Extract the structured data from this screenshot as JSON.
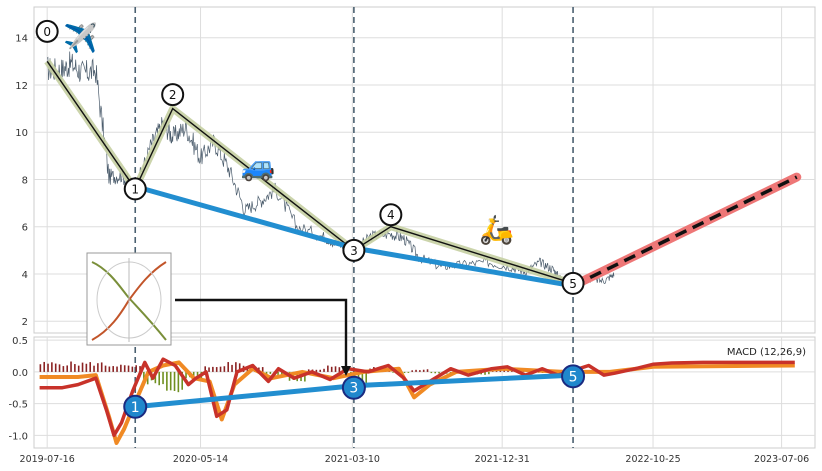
{
  "chart_data": [
    {
      "type": "line",
      "panel": "price",
      "yticks": [
        2,
        4,
        6,
        8,
        10,
        12,
        14
      ],
      "ylim": [
        1.5,
        15.3
      ],
      "xlim": [
        "2019-06-20",
        "2023-09-10"
      ],
      "grid": true,
      "price_series": {
        "name": "",
        "approx_points": [
          [
            "2019-07-16",
            12.7
          ],
          [
            "2019-08-10",
            12.6
          ],
          [
            "2019-09-01",
            12.9
          ],
          [
            "2019-09-25",
            12.5
          ],
          [
            "2019-10-20",
            12.6
          ],
          [
            "2019-11-15",
            8.1
          ],
          [
            "2019-12-10",
            8.2
          ],
          [
            "2020-01-06",
            7.6
          ],
          [
            "2020-02-05",
            9.4
          ],
          [
            "2020-03-01",
            10.4
          ],
          [
            "2020-03-20",
            9.8
          ],
          [
            "2020-04-15",
            10.2
          ],
          [
            "2020-05-14",
            8.9
          ],
          [
            "2020-06-10",
            9.6
          ],
          [
            "2020-07-10",
            8.4
          ],
          [
            "2020-08-10",
            6.7
          ],
          [
            "2020-09-10",
            7.1
          ],
          [
            "2020-10-10",
            7.6
          ],
          [
            "2020-11-20",
            6.0
          ],
          [
            "2021-01-10",
            5.6
          ],
          [
            "2021-02-15",
            5.2
          ],
          [
            "2021-03-13",
            5.0
          ],
          [
            "2021-04-15",
            5.6
          ],
          [
            "2021-05-25",
            5.7
          ],
          [
            "2021-06-20",
            5.5
          ],
          [
            "2021-07-20",
            4.7
          ],
          [
            "2021-09-01",
            4.3
          ],
          [
            "2021-10-15",
            4.4
          ],
          [
            "2021-12-01",
            4.5
          ],
          [
            "2022-01-15",
            4.3
          ],
          [
            "2022-02-15",
            4.1
          ],
          [
            "2022-03-15",
            4.5
          ],
          [
            "2022-04-10",
            4.2
          ],
          [
            "2022-04-25",
            3.8
          ],
          [
            "2022-05-20",
            3.6
          ],
          [
            "2022-06-20",
            3.8
          ],
          [
            "2022-07-20",
            3.7
          ],
          [
            "2022-08-10",
            4.0
          ]
        ]
      },
      "wave_points": [
        {
          "label": "0",
          "x": "2019-07-16",
          "y": 13.0
        },
        {
          "label": "1",
          "x": "2020-01-06",
          "y": 7.6
        },
        {
          "label": "2",
          "x": "2020-03-20",
          "y": 11.0
        },
        {
          "label": "3",
          "x": "2021-03-13",
          "y": 5.0
        },
        {
          "label": "4",
          "x": "2021-05-25",
          "y": 6.0
        },
        {
          "label": "5",
          "x": "2022-05-20",
          "y": 3.6
        }
      ],
      "trend_line": [
        {
          "x": "2020-01-06",
          "y": 7.7
        },
        {
          "x": "2021-03-13",
          "y": 5.1
        },
        {
          "x": "2022-05-20",
          "y": 3.5
        }
      ],
      "projection": [
        {
          "x": "2022-05-20",
          "y": 3.5
        },
        {
          "x": "2023-08-05",
          "y": 8.1
        }
      ],
      "vlines": [
        "2020-01-06",
        "2021-03-13",
        "2022-05-20"
      ],
      "icons": [
        {
          "name": "airplane-icon",
          "glyph": "✈️",
          "x": "2019-09-20",
          "y": 14.0
        },
        {
          "name": "car-icon",
          "glyph": "🚙",
          "x": "2020-09-05",
          "y": 8.6
        },
        {
          "name": "scooter-icon",
          "glyph": "🛵",
          "x": "2021-12-20",
          "y": 5.9
        }
      ]
    },
    {
      "type": "line",
      "panel": "macd",
      "legend": "MACD (12,26,9)",
      "legend_placement": "top-right",
      "yticks": [
        0.5,
        0.0,
        -0.5,
        -1.0
      ],
      "ylim": [
        -1.2,
        0.55
      ],
      "xticks": [
        "2019-07-16",
        "2020-05-14",
        "2021-03-10",
        "2021-12-31",
        "2022-10-25",
        "2023-07-06"
      ],
      "grid": true,
      "macd_line": [
        [
          "2019-07-01",
          -0.25
        ],
        [
          "2019-08-15",
          -0.25
        ],
        [
          "2019-09-15",
          -0.2
        ],
        [
          "2019-10-20",
          -0.1
        ],
        [
          "2019-11-10",
          -0.6
        ],
        [
          "2019-11-25",
          -1.0
        ],
        [
          "2019-12-10",
          -0.8
        ],
        [
          "2020-01-01",
          -0.3
        ],
        [
          "2020-01-25",
          0.15
        ],
        [
          "2020-02-10",
          -0.1
        ],
        [
          "2020-03-01",
          0.2
        ],
        [
          "2020-03-25",
          0.1
        ],
        [
          "2020-04-20",
          -0.2
        ],
        [
          "2020-05-05",
          -0.1
        ],
        [
          "2020-05-25",
          0.0
        ],
        [
          "2020-06-15",
          -0.7
        ],
        [
          "2020-07-05",
          -0.6
        ],
        [
          "2020-07-25",
          0.0
        ],
        [
          "2020-08-25",
          0.1
        ],
        [
          "2020-09-25",
          -0.15
        ],
        [
          "2020-10-15",
          0.05
        ],
        [
          "2020-11-15",
          -0.1
        ],
        [
          "2020-12-20",
          0.0
        ],
        [
          "2021-01-25",
          -0.12
        ],
        [
          "2021-03-01",
          0.05
        ],
        [
          "2021-04-10",
          0.0
        ],
        [
          "2021-05-20",
          0.1
        ],
        [
          "2021-06-20",
          -0.1
        ],
        [
          "2021-07-10",
          -0.3
        ],
        [
          "2021-08-10",
          -0.15
        ],
        [
          "2021-09-20",
          0.05
        ],
        [
          "2021-10-25",
          -0.05
        ],
        [
          "2021-12-10",
          0.05
        ],
        [
          "2022-01-10",
          0.08
        ],
        [
          "2022-02-15",
          -0.05
        ],
        [
          "2022-03-20",
          0.05
        ],
        [
          "2022-04-20",
          -0.05
        ],
        [
          "2022-05-20",
          0.02
        ],
        [
          "2022-06-20",
          0.1
        ],
        [
          "2022-07-20",
          -0.05
        ],
        [
          "2022-08-10",
          -0.02
        ],
        [
          "2022-09-20",
          0.05
        ],
        [
          "2022-10-25",
          0.12
        ],
        [
          "2022-12-01",
          0.14
        ],
        [
          "2023-02-01",
          0.15
        ],
        [
          "2023-05-01",
          0.15
        ],
        [
          "2023-08-01",
          0.15
        ]
      ],
      "signal_line": [
        [
          "2019-07-01",
          -0.08
        ],
        [
          "2019-09-15",
          -0.08
        ],
        [
          "2019-10-20",
          -0.05
        ],
        [
          "2019-11-15",
          -0.7
        ],
        [
          "2019-11-30",
          -1.12
        ],
        [
          "2019-12-15",
          -0.9
        ],
        [
          "2020-01-05",
          -0.5
        ],
        [
          "2020-02-01",
          0.0
        ],
        [
          "2020-03-01",
          0.1
        ],
        [
          "2020-04-01",
          0.15
        ],
        [
          "2020-05-01",
          -0.1
        ],
        [
          "2020-06-01",
          -0.15
        ],
        [
          "2020-06-25",
          -0.75
        ],
        [
          "2020-07-20",
          -0.2
        ],
        [
          "2020-08-25",
          0.05
        ],
        [
          "2020-10-01",
          -0.1
        ],
        [
          "2020-12-01",
          0.0
        ],
        [
          "2021-02-01",
          -0.1
        ],
        [
          "2021-04-01",
          0.0
        ],
        [
          "2021-06-10",
          0.05
        ],
        [
          "2021-07-10",
          -0.4
        ],
        [
          "2021-08-10",
          -0.2
        ],
        [
          "2021-10-01",
          0.0
        ],
        [
          "2022-01-01",
          0.05
        ],
        [
          "2022-05-01",
          0.0
        ],
        [
          "2022-08-01",
          0.0
        ],
        [
          "2022-10-25",
          0.08
        ],
        [
          "2023-08-01",
          0.1
        ]
      ],
      "histogram": {
        "start": "2019-07-01",
        "end": "2022-08-10",
        "sample_values": [
          0.15,
          0.15,
          0.15,
          0.12,
          0.1,
          -0.2,
          -0.3,
          -0.1,
          0.1,
          0.15,
          0.1,
          -0.05,
          -0.15,
          0.05,
          0.1,
          -0.2,
          0.08,
          -0.02,
          0.04,
          -0.03,
          0.02,
          -0.05,
          0.03,
          0.02,
          -0.02,
          0.03,
          -0.01,
          0.02
        ]
      },
      "wave_points": [
        {
          "label": "1",
          "x": "2020-01-06",
          "y": -0.55
        },
        {
          "label": "3",
          "x": "2021-03-13",
          "y": -0.25
        },
        {
          "label": "5",
          "x": "2022-05-20",
          "y": -0.07
        }
      ],
      "trend_line": [
        {
          "x": "2020-01-06",
          "y": -0.55
        },
        {
          "x": "2021-03-13",
          "y": -0.22
        },
        {
          "x": "2022-05-20",
          "y": -0.05
        }
      ]
    }
  ]
}
